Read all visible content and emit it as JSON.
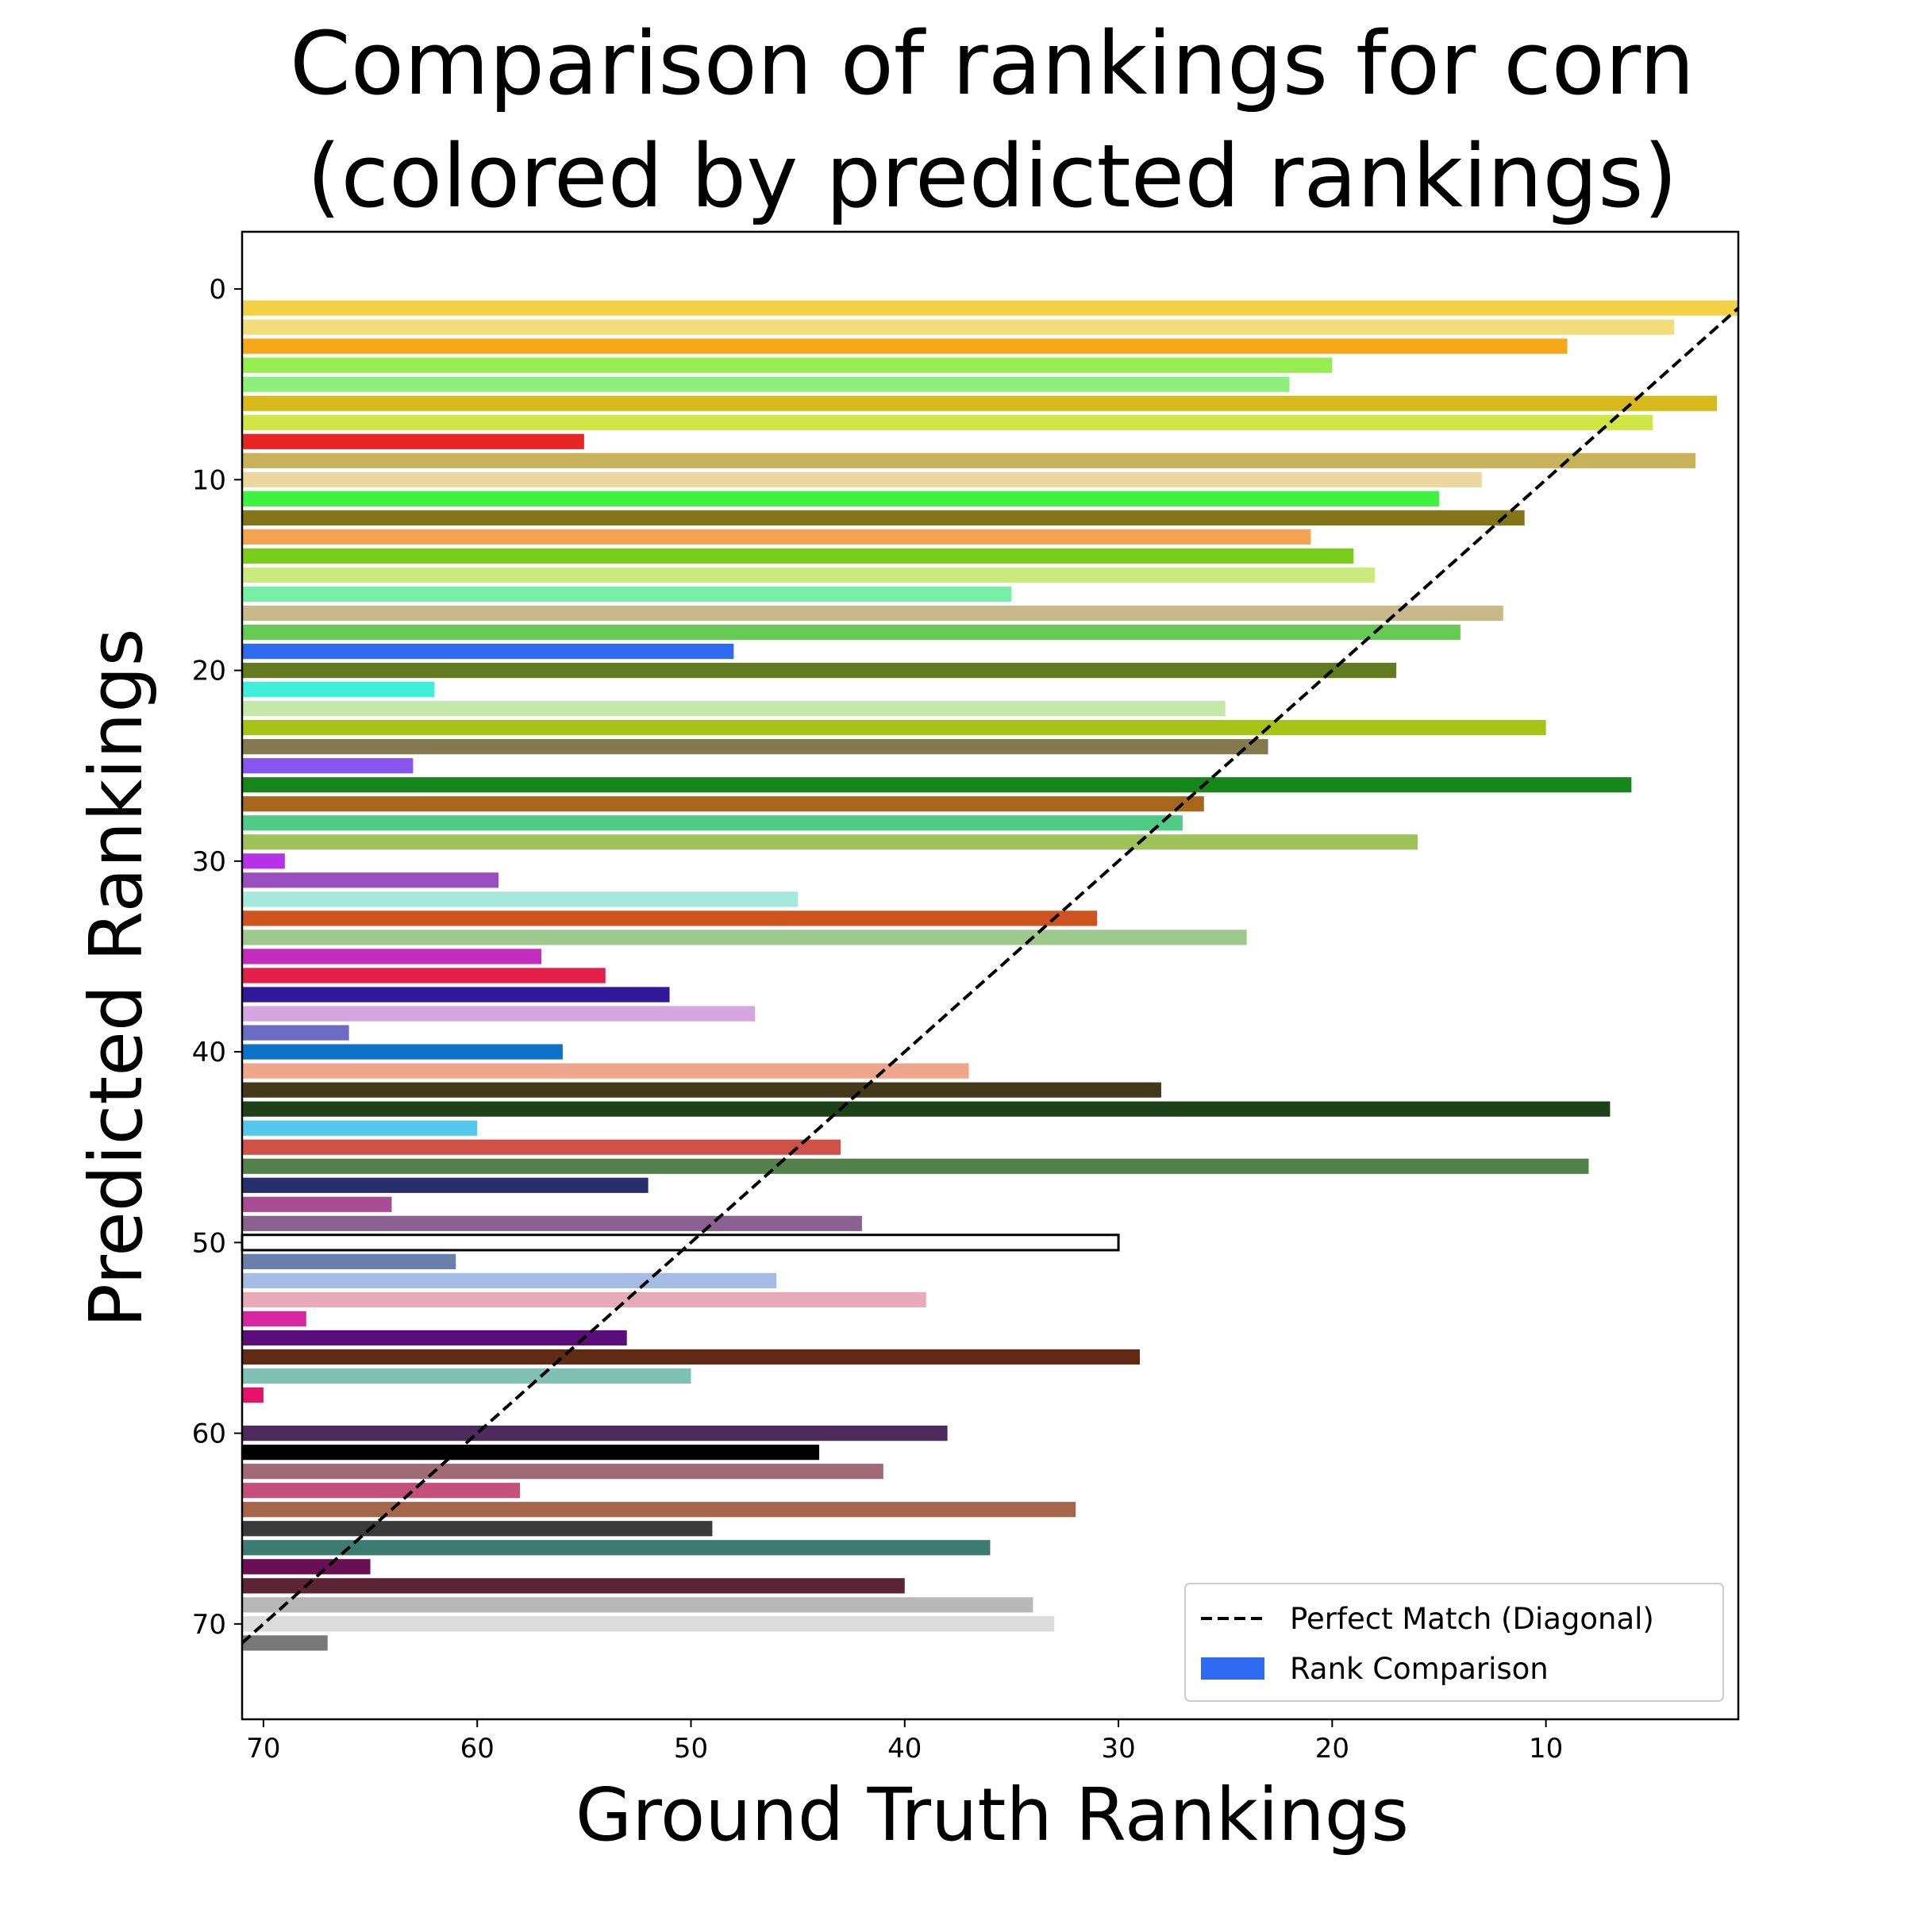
{
  "chart_data": {
    "type": "bar",
    "orientation": "horizontal",
    "title": [
      "Comparison of rankings for corn",
      "(colored by predicted rankings)"
    ],
    "xlabel": "Ground Truth Rankings",
    "ylabel": "Predicted Rankings",
    "xlim": [
      71,
      1
    ],
    "ylim": [
      75,
      -3
    ],
    "x_ticks": [
      70,
      60,
      50,
      40,
      30,
      20,
      10
    ],
    "y_ticks": [
      0,
      10,
      20,
      30,
      40,
      50,
      60,
      70
    ],
    "grid": false,
    "legend_position": "lower right",
    "legend": [
      {
        "kind": "line",
        "label": "Perfect Match (Diagonal)",
        "style": "dashed",
        "color": "#000000"
      },
      {
        "kind": "patch",
        "label": "Rank Comparison",
        "color": "#2f6bf0"
      }
    ],
    "diagonal": {
      "from": [
        71,
        71
      ],
      "to": [
        1,
        1
      ]
    },
    "bars": [
      {
        "predicted": 1,
        "ground_truth": 1,
        "color": "#f2d244"
      },
      {
        "predicted": 2,
        "ground_truth": 4,
        "color": "#f3dc7c"
      },
      {
        "predicted": 3,
        "ground_truth": 9,
        "color": "#f5a81a"
      },
      {
        "predicted": 4,
        "ground_truth": 20,
        "color": "#97ec4f"
      },
      {
        "predicted": 5,
        "ground_truth": 22,
        "color": "#8def7b"
      },
      {
        "predicted": 6,
        "ground_truth": 2,
        "color": "#d8b91c"
      },
      {
        "predicted": 7,
        "ground_truth": 5,
        "color": "#d1e544"
      },
      {
        "predicted": 8,
        "ground_truth": 55,
        "color": "#e82424"
      },
      {
        "predicted": 9,
        "ground_truth": 3,
        "color": "#c9b35a"
      },
      {
        "predicted": 10,
        "ground_truth": 13,
        "color": "#ebd8a1"
      },
      {
        "predicted": 11,
        "ground_truth": 15,
        "color": "#3ff23f"
      },
      {
        "predicted": 12,
        "ground_truth": 11,
        "color": "#837519"
      },
      {
        "predicted": 13,
        "ground_truth": 21,
        "color": "#f2a452"
      },
      {
        "predicted": 14,
        "ground_truth": 19,
        "color": "#7acd1b"
      },
      {
        "predicted": 15,
        "ground_truth": 18,
        "color": "#cbeb7f"
      },
      {
        "predicted": 16,
        "ground_truth": 35,
        "color": "#77f0a6"
      },
      {
        "predicted": 17,
        "ground_truth": 12,
        "color": "#c8b98a"
      },
      {
        "predicted": 18,
        "ground_truth": 14,
        "color": "#67ca55"
      },
      {
        "predicted": 19,
        "ground_truth": 48,
        "color": "#2f6bf0"
      },
      {
        "predicted": 20,
        "ground_truth": 17,
        "color": "#637a1e"
      },
      {
        "predicted": 21,
        "ground_truth": 62,
        "color": "#3ef0dc"
      },
      {
        "predicted": 22,
        "ground_truth": 25,
        "color": "#c4e8a9"
      },
      {
        "predicted": 23,
        "ground_truth": 10,
        "color": "#a7c416"
      },
      {
        "predicted": 24,
        "ground_truth": 23,
        "color": "#84784e"
      },
      {
        "predicted": 25,
        "ground_truth": 63,
        "color": "#8855ef"
      },
      {
        "predicted": 26,
        "ground_truth": 6,
        "color": "#17861a"
      },
      {
        "predicted": 27,
        "ground_truth": 26,
        "color": "#a7681e"
      },
      {
        "predicted": 28,
        "ground_truth": 27,
        "color": "#4fcb85"
      },
      {
        "predicted": 29,
        "ground_truth": 16,
        "color": "#9fc25b"
      },
      {
        "predicted": 30,
        "ground_truth": 69,
        "color": "#b532e7"
      },
      {
        "predicted": 31,
        "ground_truth": 59,
        "color": "#9a4fbf"
      },
      {
        "predicted": 32,
        "ground_truth": 45,
        "color": "#a5e8dd"
      },
      {
        "predicted": 33,
        "ground_truth": 31,
        "color": "#cf531e"
      },
      {
        "predicted": 34,
        "ground_truth": 24,
        "color": "#9dc98c"
      },
      {
        "predicted": 35,
        "ground_truth": 57,
        "color": "#c62bc0"
      },
      {
        "predicted": 36,
        "ground_truth": 54,
        "color": "#e31f4a"
      },
      {
        "predicted": 37,
        "ground_truth": 51,
        "color": "#30189b"
      },
      {
        "predicted": 38,
        "ground_truth": 47,
        "color": "#d4a7e1"
      },
      {
        "predicted": 39,
        "ground_truth": 66,
        "color": "#6d6cc5"
      },
      {
        "predicted": 40,
        "ground_truth": 56,
        "color": "#0d73c6"
      },
      {
        "predicted": 41,
        "ground_truth": 37,
        "color": "#eea78b"
      },
      {
        "predicted": 42,
        "ground_truth": 28,
        "color": "#44381a"
      },
      {
        "predicted": 43,
        "ground_truth": 7,
        "color": "#1d4219"
      },
      {
        "predicted": 44,
        "ground_truth": 60,
        "color": "#53c8ea"
      },
      {
        "predicted": 45,
        "ground_truth": 43,
        "color": "#cf5148"
      },
      {
        "predicted": 46,
        "ground_truth": 8,
        "color": "#548049"
      },
      {
        "predicted": 47,
        "ground_truth": 52,
        "color": "#27306f"
      },
      {
        "predicted": 48,
        "ground_truth": 64,
        "color": "#a84c93"
      },
      {
        "predicted": 49,
        "ground_truth": 42,
        "color": "#8b6191"
      },
      {
        "predicted": 50,
        "ground_truth": 30,
        "color": "#ffffff",
        "outlined": true
      },
      {
        "predicted": 51,
        "ground_truth": 61,
        "color": "#6a7fab"
      },
      {
        "predicted": 52,
        "ground_truth": 46,
        "color": "#a5bce7"
      },
      {
        "predicted": 53,
        "ground_truth": 39,
        "color": "#e8a9b9"
      },
      {
        "predicted": 54,
        "ground_truth": 68,
        "color": "#d8279e"
      },
      {
        "predicted": 55,
        "ground_truth": 53,
        "color": "#5b0e7b"
      },
      {
        "predicted": 56,
        "ground_truth": 29,
        "color": "#602a14"
      },
      {
        "predicted": 57,
        "ground_truth": 50,
        "color": "#7fc1b3"
      },
      {
        "predicted": 58,
        "ground_truth": 70,
        "color": "#e41367"
      },
      {
        "predicted": 60,
        "ground_truth": 38,
        "color": "#4e2b5f"
      },
      {
        "predicted": 61,
        "ground_truth": 44,
        "color": "#000000"
      },
      {
        "predicted": 62,
        "ground_truth": 41,
        "color": "#a26a79"
      },
      {
        "predicted": 63,
        "ground_truth": 58,
        "color": "#c3507a"
      },
      {
        "predicted": 64,
        "ground_truth": 32,
        "color": "#a5664b"
      },
      {
        "predicted": 65,
        "ground_truth": 49,
        "color": "#3a3a3a"
      },
      {
        "predicted": 66,
        "ground_truth": 36,
        "color": "#3b7b70"
      },
      {
        "predicted": 67,
        "ground_truth": 65,
        "color": "#6b0f54"
      },
      {
        "predicted": 68,
        "ground_truth": 40,
        "color": "#5b2535"
      },
      {
        "predicted": 69,
        "ground_truth": 34,
        "color": "#b8b8b8"
      },
      {
        "predicted": 70,
        "ground_truth": 33,
        "color": "#dcdcdc"
      },
      {
        "predicted": 71,
        "ground_truth": 67,
        "color": "#787878"
      }
    ]
  }
}
